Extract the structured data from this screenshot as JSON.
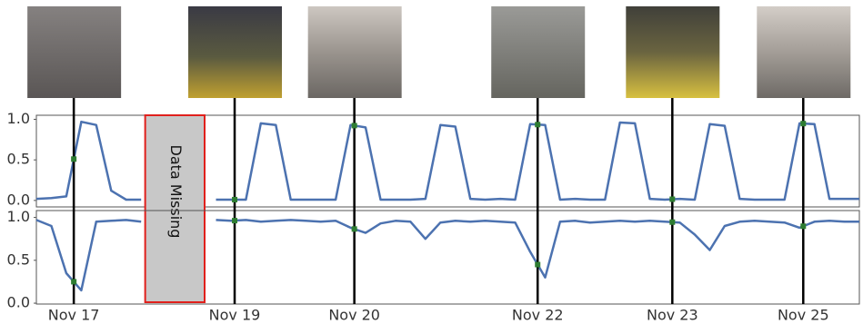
{
  "chart_data": [
    {
      "type": "line",
      "annotation": "Data Missing",
      "color": "#4c72b0",
      "xlim": [
        0,
        220
      ],
      "ylim": [
        -0.08,
        1.05
      ],
      "yticks": [
        {
          "value": 0,
          "label": "0.0"
        },
        {
          "value": 0.5,
          "label": "0.5"
        },
        {
          "value": 1,
          "label": "1.0"
        }
      ],
      "x": [
        0,
        4,
        8,
        12,
        16,
        20,
        24,
        28,
        32,
        36,
        40,
        44,
        48,
        52,
        56,
        60,
        64,
        68,
        72,
        76,
        80,
        84,
        88,
        92,
        96,
        100,
        104,
        108,
        112,
        116,
        120,
        124,
        128,
        132,
        136,
        140,
        144,
        148,
        152,
        156,
        160,
        164,
        168,
        172,
        176,
        180,
        184,
        188,
        192,
        196,
        200,
        204,
        208,
        212,
        216,
        220
      ],
      "values": [
        0.02,
        0.03,
        0.05,
        0.97,
        0.93,
        0.12,
        0.01,
        0.01,
        null,
        null,
        null,
        null,
        0.01,
        0.01,
        0.01,
        0.95,
        0.93,
        0.01,
        0.01,
        0.01,
        0.01,
        0.93,
        0.9,
        0.01,
        0.01,
        0.01,
        0.02,
        0.93,
        0.91,
        0.02,
        0.01,
        0.02,
        0.01,
        0.94,
        0.93,
        0.01,
        0.02,
        0.01,
        0.01,
        0.96,
        0.95,
        0.02,
        0.01,
        0.02,
        0.01,
        0.94,
        0.92,
        0.02,
        0.01,
        0.01,
        0.01,
        0.95,
        0.94,
        0.02,
        0.02,
        0.02
      ]
    },
    {
      "type": "line",
      "color": "#4c72b0",
      "xlim": [
        0,
        220
      ],
      "ylim": [
        -0.01,
        1.08
      ],
      "yticks": [
        {
          "value": 0,
          "label": "0.0"
        },
        {
          "value": 0.5,
          "label": "0.5"
        },
        {
          "value": 1,
          "label": "1.0"
        }
      ],
      "xticks": [
        {
          "value": 10,
          "label": "Nov 17"
        },
        {
          "value": 53,
          "label": "Nov 19"
        },
        {
          "value": 85,
          "label": "Nov 20"
        },
        {
          "value": 134,
          "label": "Nov 22"
        },
        {
          "value": 170,
          "label": "Nov 23"
        },
        {
          "value": 205,
          "label": "Nov 25"
        }
      ],
      "x": [
        0,
        4,
        8,
        12,
        16,
        20,
        24,
        28,
        32,
        36,
        40,
        44,
        48,
        52,
        56,
        60,
        64,
        68,
        72,
        76,
        80,
        84,
        88,
        92,
        96,
        100,
        104,
        108,
        112,
        116,
        120,
        124,
        128,
        132,
        136,
        140,
        144,
        148,
        152,
        156,
        160,
        164,
        168,
        172,
        176,
        180,
        184,
        188,
        192,
        196,
        200,
        204,
        208,
        212,
        216,
        220
      ],
      "values": [
        0.97,
        0.9,
        0.35,
        0.15,
        0.95,
        0.96,
        0.97,
        0.95,
        null,
        null,
        null,
        null,
        0.97,
        0.96,
        0.97,
        0.95,
        0.96,
        0.97,
        0.96,
        0.95,
        0.96,
        0.88,
        0.82,
        0.93,
        0.96,
        0.95,
        0.75,
        0.94,
        0.96,
        0.95,
        0.96,
        0.95,
        0.94,
        0.6,
        0.3,
        0.95,
        0.96,
        0.94,
        0.95,
        0.96,
        0.95,
        0.96,
        0.95,
        0.94,
        0.8,
        0.62,
        0.9,
        0.95,
        0.96,
        0.95,
        0.94,
        0.88,
        0.95,
        0.96,
        0.95,
        0.95
      ]
    }
  ]
}
